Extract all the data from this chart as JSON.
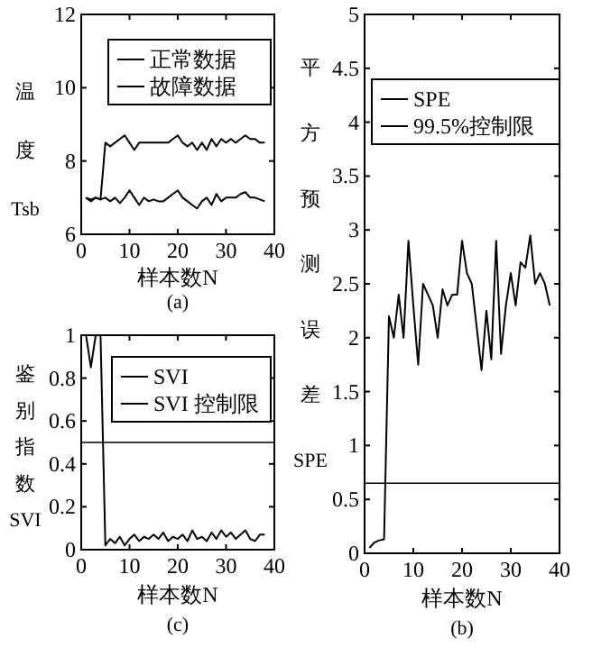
{
  "chart_data": [
    {
      "type": "line",
      "ylabel": "温度Tsb",
      "xlabel": "样本数N",
      "annotations": [
        "(a)"
      ],
      "x": [
        1,
        2,
        3,
        4,
        5,
        6,
        7,
        8,
        9,
        10,
        11,
        12,
        13,
        14,
        15,
        16,
        17,
        18,
        19,
        20,
        21,
        22,
        23,
        24,
        25,
        26,
        27,
        28,
        29,
        30,
        31,
        32,
        33,
        34,
        35,
        36,
        37,
        38
      ],
      "xlim": [
        0,
        40
      ],
      "xticks": [
        0,
        10,
        20,
        30,
        40
      ],
      "ylim": [
        6,
        12
      ],
      "yticks": [
        6,
        8,
        10,
        12
      ],
      "grid": false,
      "legend": "top right",
      "marker": "none",
      "line_style": "solid",
      "series": [
        {
          "name": "正常数据",
          "color": "#000000",
          "values": [
            7.0,
            6.9,
            7.0,
            6.95,
            7.0,
            6.9,
            7.0,
            6.85,
            7.0,
            7.2,
            7.0,
            6.8,
            7.0,
            6.9,
            6.95,
            6.9,
            6.9,
            7.0,
            7.1,
            7.2,
            7.0,
            6.9,
            6.8,
            6.7,
            6.9,
            7.0,
            6.8,
            7.1,
            6.9,
            7.0,
            7.0,
            7.0,
            7.1,
            7.15,
            7.0,
            7.0,
            6.95,
            6.9
          ]
        },
        {
          "name": "故障数据",
          "color": "#000000",
          "values": [
            7.0,
            6.95,
            7.0,
            6.95,
            8.5,
            8.4,
            8.5,
            8.6,
            8.7,
            8.5,
            8.3,
            8.5,
            8.5,
            8.5,
            8.5,
            8.5,
            8.5,
            8.5,
            8.6,
            8.7,
            8.5,
            8.4,
            8.5,
            8.3,
            8.5,
            8.3,
            8.6,
            8.4,
            8.6,
            8.5,
            8.6,
            8.5,
            8.6,
            8.7,
            8.6,
            8.6,
            8.5,
            8.5
          ]
        }
      ]
    },
    {
      "type": "line",
      "ylabel": "平方预测误差SPE",
      "xlabel": "样本数N",
      "annotations": [
        "(b)"
      ],
      "x": [
        1,
        2,
        3,
        4,
        5,
        6,
        7,
        8,
        9,
        10,
        11,
        12,
        13,
        14,
        15,
        16,
        17,
        18,
        19,
        20,
        21,
        22,
        23,
        24,
        25,
        26,
        27,
        28,
        29,
        30,
        31,
        32,
        33,
        34,
        35,
        36,
        37,
        38
      ],
      "xlim": [
        0,
        40
      ],
      "xticks": [
        0,
        10,
        20,
        30,
        40
      ],
      "ylim": [
        0,
        5
      ],
      "yticks": [
        0,
        0.5,
        1,
        1.5,
        2,
        2.5,
        3,
        3.5,
        4,
        4.5,
        5
      ],
      "grid": false,
      "legend": "top",
      "marker": "none",
      "line_style": "solid",
      "series": [
        {
          "name": "SPE",
          "color": "#000000",
          "values": [
            0.05,
            0.1,
            0.12,
            0.13,
            2.2,
            2.0,
            2.4,
            2.0,
            2.9,
            2.3,
            1.75,
            2.5,
            2.4,
            2.3,
            2.0,
            2.45,
            2.3,
            2.4,
            2.4,
            2.9,
            2.6,
            2.5,
            2.1,
            1.7,
            2.25,
            1.8,
            2.9,
            1.85,
            2.3,
            2.6,
            2.3,
            2.7,
            2.65,
            2.95,
            2.5,
            2.6,
            2.5,
            2.3
          ]
        }
      ],
      "ref_lines": [
        {
          "axis": "y",
          "value": 0.65,
          "label": "99.5%控制限",
          "color": "#000000"
        }
      ]
    },
    {
      "type": "line",
      "ylabel": "鉴别指数SVI",
      "xlabel": "样本数N",
      "annotations": [
        "(c)"
      ],
      "x": [
        1,
        2,
        3,
        4,
        5,
        6,
        7,
        8,
        9,
        10,
        11,
        12,
        13,
        14,
        15,
        16,
        17,
        18,
        19,
        20,
        21,
        22,
        23,
        24,
        25,
        26,
        27,
        28,
        29,
        30,
        31,
        32,
        33,
        34,
        35,
        36,
        37,
        38
      ],
      "xlim": [
        0,
        40
      ],
      "xticks": [
        0,
        10,
        20,
        30,
        40
      ],
      "ylim": [
        0,
        1
      ],
      "yticks": [
        0,
        0.2,
        0.4,
        0.6,
        0.8,
        1
      ],
      "grid": false,
      "legend": "top right",
      "marker": "none",
      "line_style": "solid",
      "series": [
        {
          "name": "SVI",
          "color": "#000000",
          "values": [
            1.0,
            0.85,
            1.0,
            1.0,
            0.02,
            0.05,
            0.03,
            0.06,
            0.02,
            0.05,
            0.07,
            0.04,
            0.06,
            0.05,
            0.07,
            0.05,
            0.08,
            0.04,
            0.06,
            0.05,
            0.07,
            0.04,
            0.09,
            0.05,
            0.06,
            0.04,
            0.08,
            0.05,
            0.09,
            0.06,
            0.08,
            0.05,
            0.07,
            0.09,
            0.05,
            0.04,
            0.07,
            0.07
          ]
        }
      ],
      "ref_lines": [
        {
          "axis": "y",
          "value": 0.5,
          "label": "SVI 控制限",
          "color": "#000000"
        }
      ]
    }
  ]
}
